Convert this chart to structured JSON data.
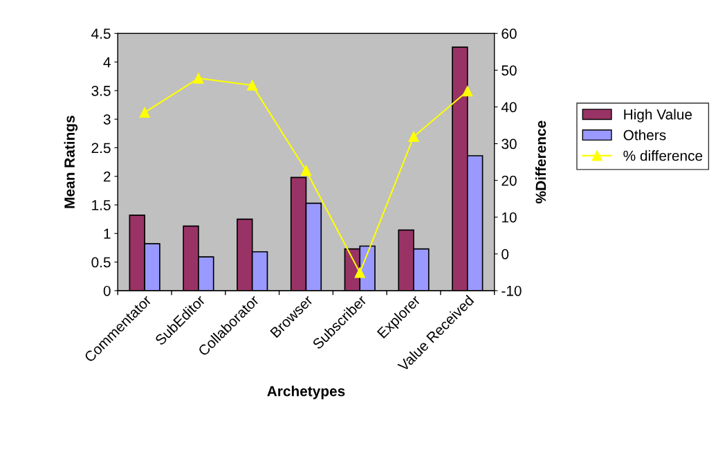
{
  "chart_data": {
    "type": "bar",
    "xlabel": "Archetypes",
    "ylabel": "Mean Ratings",
    "y2label": "%Difference",
    "categories": [
      "Commentator",
      "SubEditor",
      "Collaborator",
      "Browser",
      "Subscriber",
      "Explorer",
      "Value Received"
    ],
    "series": [
      {
        "name": "High Value",
        "color": "#993366",
        "values": [
          1.32,
          1.13,
          1.25,
          1.98,
          0.73,
          1.06,
          4.26
        ]
      },
      {
        "name": "Others",
        "color": "#9999ff",
        "values": [
          0.82,
          0.59,
          0.68,
          1.53,
          0.78,
          0.73,
          2.36
        ]
      },
      {
        "name": "% difference",
        "type": "line",
        "axis": "y2",
        "color": "#ffff00",
        "marker": "triangle",
        "values": [
          38.5,
          47.8,
          45.9,
          22.7,
          -5.1,
          31.9,
          44.3
        ]
      }
    ],
    "ylim": [
      0,
      4.5
    ],
    "yticks": [
      0,
      0.5,
      1,
      1.5,
      2,
      2.5,
      3,
      3.5,
      4,
      4.5
    ],
    "y2lim": [
      -10,
      60
    ],
    "y2ticks": [
      -10,
      0,
      10,
      20,
      30,
      40,
      50,
      60
    ],
    "legend": "right",
    "grid": false
  }
}
